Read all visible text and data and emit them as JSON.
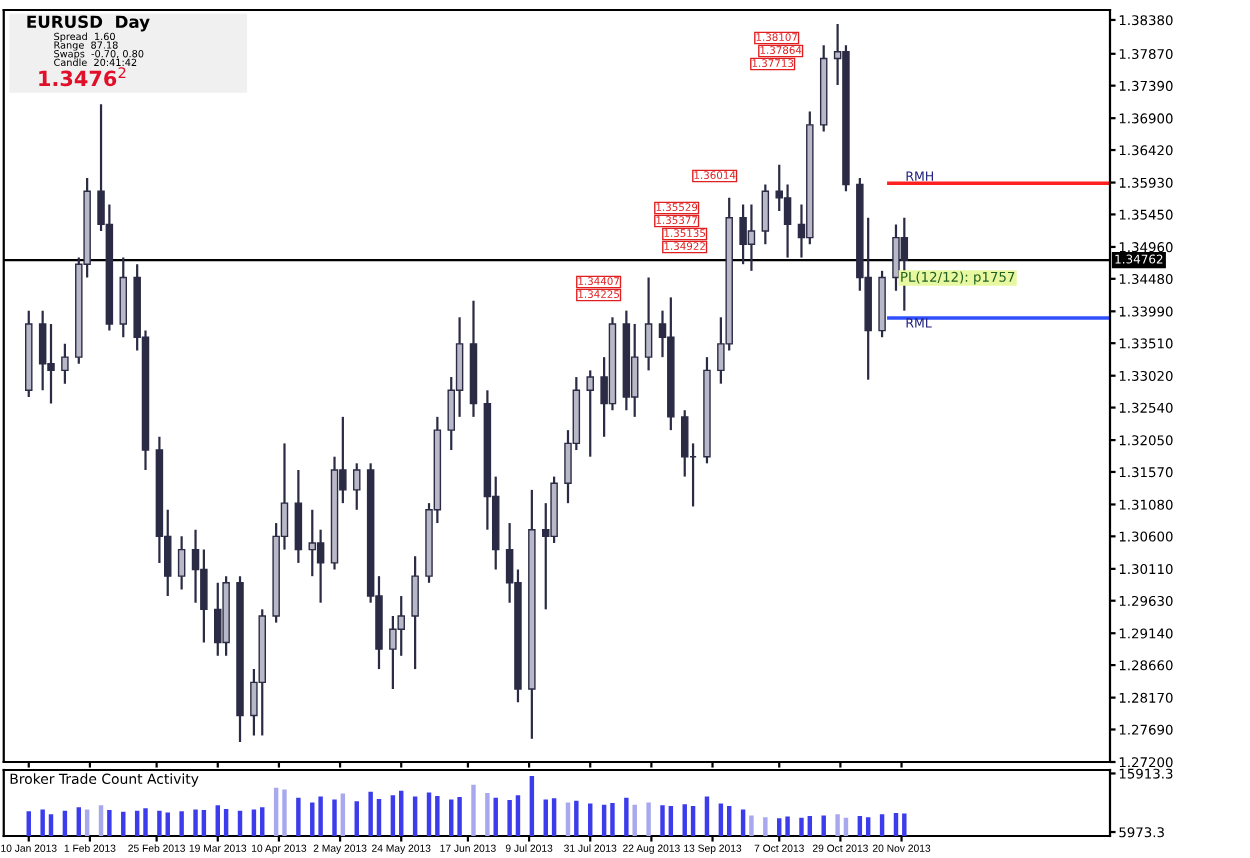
{
  "chart_data": [
    {
      "type": "candlestick",
      "x": [
        "2013-01-10",
        "2013-01-15",
        "2013-01-18",
        "2013-01-23",
        "2013-01-28",
        "2013-01-31",
        "2013-02-05",
        "2013-02-08",
        "2013-02-13",
        "2013-02-18",
        "2013-02-21",
        "2013-02-26",
        "2013-03-01",
        "2013-03-06",
        "2013-03-11",
        "2013-03-14",
        "2013-03-19",
        "2013-03-22",
        "2013-03-27",
        "2013-04-01",
        "2013-04-04",
        "2013-04-09",
        "2013-04-12",
        "2013-04-17",
        "2013-04-22",
        "2013-04-25",
        "2013-04-30",
        "2013-05-03",
        "2013-05-08",
        "2013-05-13",
        "2013-05-16",
        "2013-05-21",
        "2013-05-24",
        "2013-05-29",
        "2013-06-03",
        "2013-06-06",
        "2013-06-11",
        "2013-06-14",
        "2013-06-19",
        "2013-06-24",
        "2013-06-27",
        "2013-07-02",
        "2013-07-05",
        "2013-07-10",
        "2013-07-15",
        "2013-07-18",
        "2013-07-23",
        "2013-07-26",
        "2013-07-31",
        "2013-08-05",
        "2013-08-08",
        "2013-08-13",
        "2013-08-16",
        "2013-08-21",
        "2013-08-26",
        "2013-08-29",
        "2013-09-03",
        "2013-09-06",
        "2013-09-11",
        "2013-09-16",
        "2013-09-19",
        "2013-09-24",
        "2013-09-27",
        "2013-10-02",
        "2013-10-07",
        "2013-10-10",
        "2013-10-15",
        "2013-10-18",
        "2013-10-23",
        "2013-10-28",
        "2013-10-31",
        "2013-11-05",
        "2013-11-08",
        "2013-11-13",
        "2013-11-18",
        "2013-11-21"
      ],
      "series": [
        {
          "color": "#2b2b45",
          "ohlc": [
            [
              1.328,
              1.34,
              1.327,
              1.338
            ],
            [
              1.338,
              1.34,
              1.328,
              1.332
            ],
            [
              1.332,
              1.338,
              1.326,
              1.331
            ],
            [
              1.331,
              1.335,
              1.329,
              1.333
            ],
            [
              1.333,
              1.348,
              1.332,
              1.347
            ],
            [
              1.347,
              1.36,
              1.345,
              1.358
            ],
            [
              1.358,
              1.3711,
              1.352,
              1.353
            ],
            [
              1.353,
              1.356,
              1.337,
              1.338
            ],
            [
              1.338,
              1.348,
              1.336,
              1.345
            ],
            [
              1.345,
              1.347,
              1.334,
              1.336
            ],
            [
              1.336,
              1.337,
              1.316,
              1.319
            ],
            [
              1.319,
              1.321,
              1.302,
              1.306
            ],
            [
              1.306,
              1.31,
              1.297,
              1.3
            ],
            [
              1.3,
              1.306,
              1.298,
              1.304
            ],
            [
              1.304,
              1.307,
              1.296,
              1.301
            ],
            [
              1.301,
              1.304,
              1.29,
              1.295
            ],
            [
              1.295,
              1.299,
              1.288,
              1.29
            ],
            [
              1.29,
              1.3,
              1.288,
              1.299
            ],
            [
              1.299,
              1.3,
              1.275,
              1.279
            ],
            [
              1.279,
              1.286,
              1.276,
              1.284
            ],
            [
              1.284,
              1.295,
              1.276,
              1.294
            ],
            [
              1.294,
              1.308,
              1.293,
              1.306
            ],
            [
              1.306,
              1.32,
              1.304,
              1.311
            ],
            [
              1.311,
              1.316,
              1.302,
              1.304
            ],
            [
              1.304,
              1.31,
              1.3,
              1.305
            ],
            [
              1.305,
              1.307,
              1.296,
              1.302
            ],
            [
              1.302,
              1.318,
              1.301,
              1.316
            ],
            [
              1.316,
              1.324,
              1.311,
              1.313
            ],
            [
              1.313,
              1.317,
              1.31,
              1.316
            ],
            [
              1.316,
              1.317,
              1.296,
              1.297
            ],
            [
              1.297,
              1.3,
              1.286,
              1.289
            ],
            [
              1.289,
              1.294,
              1.283,
              1.292
            ],
            [
              1.292,
              1.297,
              1.288,
              1.294
            ],
            [
              1.294,
              1.303,
              1.286,
              1.3
            ],
            [
              1.3,
              1.311,
              1.299,
              1.31
            ],
            [
              1.31,
              1.324,
              1.308,
              1.322
            ],
            [
              1.322,
              1.33,
              1.319,
              1.328
            ],
            [
              1.328,
              1.339,
              1.324,
              1.335
            ],
            [
              1.335,
              1.3415,
              1.324,
              1.326
            ],
            [
              1.326,
              1.328,
              1.307,
              1.312
            ],
            [
              1.312,
              1.315,
              1.301,
              1.304
            ],
            [
              1.304,
              1.308,
              1.296,
              1.299
            ],
            [
              1.299,
              1.301,
              1.281,
              1.283
            ],
            [
              1.283,
              1.313,
              1.2755,
              1.307
            ],
            [
              1.307,
              1.311,
              1.295,
              1.306
            ],
            [
              1.306,
              1.315,
              1.305,
              1.314
            ],
            [
              1.314,
              1.322,
              1.311,
              1.32
            ],
            [
              1.32,
              1.33,
              1.319,
              1.328
            ],
            [
              1.328,
              1.331,
              1.318,
              1.33
            ],
            [
              1.33,
              1.333,
              1.321,
              1.326
            ],
            [
              1.326,
              1.339,
              1.325,
              1.338
            ],
            [
              1.338,
              1.34,
              1.325,
              1.327
            ],
            [
              1.327,
              1.338,
              1.324,
              1.333
            ],
            [
              1.333,
              1.345,
              1.331,
              1.338
            ],
            [
              1.338,
              1.34,
              1.333,
              1.336
            ],
            [
              1.336,
              1.342,
              1.322,
              1.324
            ],
            [
              1.324,
              1.325,
              1.315,
              1.318
            ],
            [
              1.318,
              1.32,
              1.3105,
              1.318
            ],
            [
              1.318,
              1.333,
              1.317,
              1.331
            ],
            [
              1.331,
              1.339,
              1.329,
              1.335
            ],
            [
              1.335,
              1.357,
              1.334,
              1.354
            ],
            [
              1.354,
              1.356,
              1.347,
              1.35
            ],
            [
              1.35,
              1.356,
              1.346,
              1.352
            ],
            [
              1.352,
              1.359,
              1.35,
              1.358
            ],
            [
              1.358,
              1.362,
              1.355,
              1.357
            ],
            [
              1.357,
              1.359,
              1.348,
              1.353
            ],
            [
              1.353,
              1.356,
              1.348,
              1.351
            ],
            [
              1.351,
              1.37,
              1.35,
              1.368
            ],
            [
              1.368,
              1.38,
              1.367,
              1.378
            ],
            [
              1.378,
              1.3832,
              1.374,
              1.379
            ],
            [
              1.379,
              1.38,
              1.358,
              1.359
            ],
            [
              1.359,
              1.36,
              1.343,
              1.345
            ],
            [
              1.345,
              1.354,
              1.3296,
              1.337
            ],
            [
              1.337,
              1.346,
              1.336,
              1.345
            ],
            [
              1.345,
              1.353,
              1.343,
              1.351
            ],
            [
              1.351,
              1.354,
              1.34,
              1.3476
            ]
          ]
        }
      ],
      "xlim": [
        "2013-01-01",
        "2014-02-03"
      ],
      "xticks": [
        {
          "value": "2013-01-10",
          "label": null
        },
        {
          "value": "2013-02-01",
          "label": null
        },
        {
          "value": "2013-02-25",
          "label": null
        },
        {
          "value": "2013-03-19",
          "label": null
        },
        {
          "value": "2013-04-10",
          "label": null
        },
        {
          "value": "2013-05-02",
          "label": null
        },
        {
          "value": "2013-05-24",
          "label": null
        },
        {
          "value": "2013-06-17",
          "label": null
        },
        {
          "value": "2013-07-09",
          "label": null
        },
        {
          "value": "2013-07-31",
          "label": null
        },
        {
          "value": "2013-08-22",
          "label": null
        },
        {
          "value": "2013-09-13",
          "label": null
        },
        {
          "value": "2013-10-07",
          "label": null
        },
        {
          "value": "2013-10-29",
          "label": null
        },
        {
          "value": "2013-11-20",
          "label": null
        }
      ],
      "ylim": [
        1.272,
        1.3853
      ],
      "yticks": [
        {
          "value": 1.3838,
          "label": "1.38380"
        },
        {
          "value": 1.3787,
          "label": "1.37870"
        },
        {
          "value": 1.3739,
          "label": "1.37390"
        },
        {
          "value": 1.369,
          "label": "1.36900"
        },
        {
          "value": 1.3642,
          "label": "1.36420"
        },
        {
          "value": 1.3593,
          "label": "1.35930"
        },
        {
          "value": 1.3545,
          "label": "1.35450"
        },
        {
          "value": 1.3496,
          "label": "1.34960"
        },
        {
          "value": 1.3448,
          "label": "1.34480"
        },
        {
          "value": 1.3399,
          "label": "1.33990"
        },
        {
          "value": 1.3351,
          "label": "1.33510"
        },
        {
          "value": 1.3302,
          "label": "1.33020"
        },
        {
          "value": 1.3254,
          "label": "1.32540"
        },
        {
          "value": 1.3205,
          "label": "1.32050"
        },
        {
          "value": 1.3157,
          "label": "1.31570"
        },
        {
          "value": 1.3108,
          "label": "1.31080"
        },
        {
          "value": 1.306,
          "label": "1.30600"
        },
        {
          "value": 1.3011,
          "label": "1.30110"
        },
        {
          "value": 1.2963,
          "label": "1.29630"
        },
        {
          "value": 1.2914,
          "label": "1.29140"
        },
        {
          "value": 1.2866,
          "label": "1.28660"
        },
        {
          "value": 1.2817,
          "label": "1.28170"
        },
        {
          "value": 1.2769,
          "label": "1.27690"
        },
        {
          "value": 1.272,
          "label": "1.27200"
        }
      ],
      "tick_labels": "y",
      "ref_lines": [
        {
          "axis": "y",
          "value": 1.34762,
          "label": "1.34762",
          "color": "#000000"
        },
        {
          "axis": "y",
          "value": 1.3592,
          "label": "RMH",
          "color": "#ff2020"
        },
        {
          "axis": "y",
          "value": 1.3389,
          "label": "RML",
          "color": "#3050ff"
        }
      ],
      "annotations": [
        "EURUSD  Day",
        "Spread  1.60",
        "Range  87.18",
        "Swaps  -0.70, 0.80",
        "Candle  20:41:42",
        "1.3476$^{2}$",
        "1.38107",
        "1.37864",
        "1.37713",
        "1.36014",
        "1.35529",
        "1.35377",
        "1.35135",
        "1.34922",
        "1.34407",
        "1.34225",
        "PL(12/12): p1757"
      ]
    },
    {
      "type": "bar",
      "title": "Broker Trade Count Activity",
      "x": [
        "2013-01-10",
        "2013-01-15",
        "2013-01-18",
        "2013-01-23",
        "2013-01-28",
        "2013-01-31",
        "2013-02-05",
        "2013-02-08",
        "2013-02-13",
        "2013-02-18",
        "2013-02-21",
        "2013-02-26",
        "2013-03-01",
        "2013-03-06",
        "2013-03-11",
        "2013-03-14",
        "2013-03-19",
        "2013-03-22",
        "2013-03-27",
        "2013-04-01",
        "2013-04-04",
        "2013-04-09",
        "2013-04-12",
        "2013-04-17",
        "2013-04-22",
        "2013-04-25",
        "2013-04-30",
        "2013-05-03",
        "2013-05-08",
        "2013-05-13",
        "2013-05-16",
        "2013-05-21",
        "2013-05-24",
        "2013-05-29",
        "2013-06-03",
        "2013-06-06",
        "2013-06-11",
        "2013-06-14",
        "2013-06-19",
        "2013-06-24",
        "2013-06-27",
        "2013-07-02",
        "2013-07-05",
        "2013-07-10",
        "2013-07-15",
        "2013-07-18",
        "2013-07-23",
        "2013-07-26",
        "2013-07-31",
        "2013-08-05",
        "2013-08-08",
        "2013-08-13",
        "2013-08-16",
        "2013-08-21",
        "2013-08-26",
        "2013-08-29",
        "2013-09-03",
        "2013-09-06",
        "2013-09-11",
        "2013-09-16",
        "2013-09-19",
        "2013-09-24",
        "2013-09-27",
        "2013-10-02",
        "2013-10-07",
        "2013-10-10",
        "2013-10-15",
        "2013-10-18",
        "2013-10-23",
        "2013-10-28",
        "2013-10-31",
        "2013-11-05",
        "2013-11-08",
        "2013-11-13",
        "2013-11-18",
        "2013-11-21"
      ],
      "values": [
        9500,
        9800,
        9000,
        9600,
        10200,
        9800,
        10500,
        9700,
        9400,
        9600,
        10000,
        9600,
        9300,
        9500,
        9800,
        9700,
        10500,
        9900,
        9600,
        9800,
        10200,
        13500,
        13200,
        11800,
        11000,
        12000,
        11500,
        12500,
        11200,
        12800,
        11600,
        12200,
        13000,
        12000,
        12700,
        12100,
        11500,
        11900,
        14000,
        12600,
        11800,
        11400,
        12200,
        15500,
        11500,
        11700,
        11000,
        11300,
        10800,
        10600,
        10900,
        11800,
        10600,
        11000,
        10500,
        10400,
        10700,
        10400,
        12000,
        10800,
        10400,
        9800,
        8800,
        8500,
        8300,
        8600,
        8400,
        8700,
        8800,
        9000,
        8400,
        8700,
        8500,
        9000,
        9200,
        9100
      ],
      "colors": [
        "#3c3cec",
        "#3c3cec",
        "#3c3cec",
        "#3c3cec",
        "#3c3cec",
        "#a8a8ee",
        "#a8a8ee",
        "#3c3cec",
        "#3c3cec",
        "#3c3cec",
        "#3c3cec",
        "#3c3cec",
        "#3c3cec",
        "#3c3cec",
        "#3c3cec",
        "#3c3cec",
        "#3c3cec",
        "#3c3cec",
        "#3c3cec",
        "#3c3cec",
        "#3c3cec",
        "#a8a8ee",
        "#a8a8ee",
        "#3c3cec",
        "#3c3cec",
        "#3c3cec",
        "#3c3cec",
        "#a8a8ee",
        "#3c3cec",
        "#3c3cec",
        "#3c3cec",
        "#3c3cec",
        "#3c3cec",
        "#3c3cec",
        "#3c3cec",
        "#3c3cec",
        "#3c3cec",
        "#3c3cec",
        "#a8a8ee",
        "#a8a8ee",
        "#3c3cec",
        "#3c3cec",
        "#3c3cec",
        "#3c3cec",
        "#3c3cec",
        "#3c3cec",
        "#a8a8ee",
        "#3c3cec",
        "#3c3cec",
        "#3c3cec",
        "#3c3cec",
        "#3c3cec",
        "#a8a8ee",
        "#a8a8ee",
        "#3c3cec",
        "#3c3cec",
        "#3c3cec",
        "#3c3cec",
        "#3c3cec",
        "#3c3cec",
        "#3c3cec",
        "#3c3cec",
        "#a8a8ee",
        "#a8a8ee",
        "#3c3cec",
        "#3c3cec",
        "#3c3cec",
        "#3c3cec",
        "#3c3cec",
        "#a8a8ee",
        "#a8a8ee",
        "#3c3cec",
        "#3c3cec",
        "#3c3cec",
        "#3c3cec",
        "#3c3cec"
      ],
      "xlim": [
        "2013-01-01",
        "2014-02-03"
      ],
      "xticks": [
        {
          "value": "2013-01-10",
          "label": "10 Jan 2013"
        },
        {
          "value": "2013-02-01",
          "label": "1 Feb 2013"
        },
        {
          "value": "2013-02-25",
          "label": "25 Feb 2013"
        },
        {
          "value": "2013-03-19",
          "label": "19 Mar 2013"
        },
        {
          "value": "2013-04-10",
          "label": "10 Apr 2013"
        },
        {
          "value": "2013-05-02",
          "label": "2 May 2013"
        },
        {
          "value": "2013-05-24",
          "label": "24 May 2013"
        },
        {
          "value": "2013-06-17",
          "label": "17 Jun 2013"
        },
        {
          "value": "2013-07-09",
          "label": "9 Jul 2013"
        },
        {
          "value": "2013-07-31",
          "label": "31 Jul 2013"
        },
        {
          "value": "2013-08-22",
          "label": "22 Aug 2013"
        },
        {
          "value": "2013-09-13",
          "label": "13 Sep 2013"
        },
        {
          "value": "2013-10-07",
          "label": "7 Oct 2013"
        },
        {
          "value": "2013-10-29",
          "label": "29 Oct 2013"
        },
        {
          "value": "2013-11-20",
          "label": "20 Nov 2013"
        }
      ],
      "ylim": [
        5300,
        16500
      ],
      "yticks": [
        15913.3,
        5973.3
      ]
    }
  ]
}
